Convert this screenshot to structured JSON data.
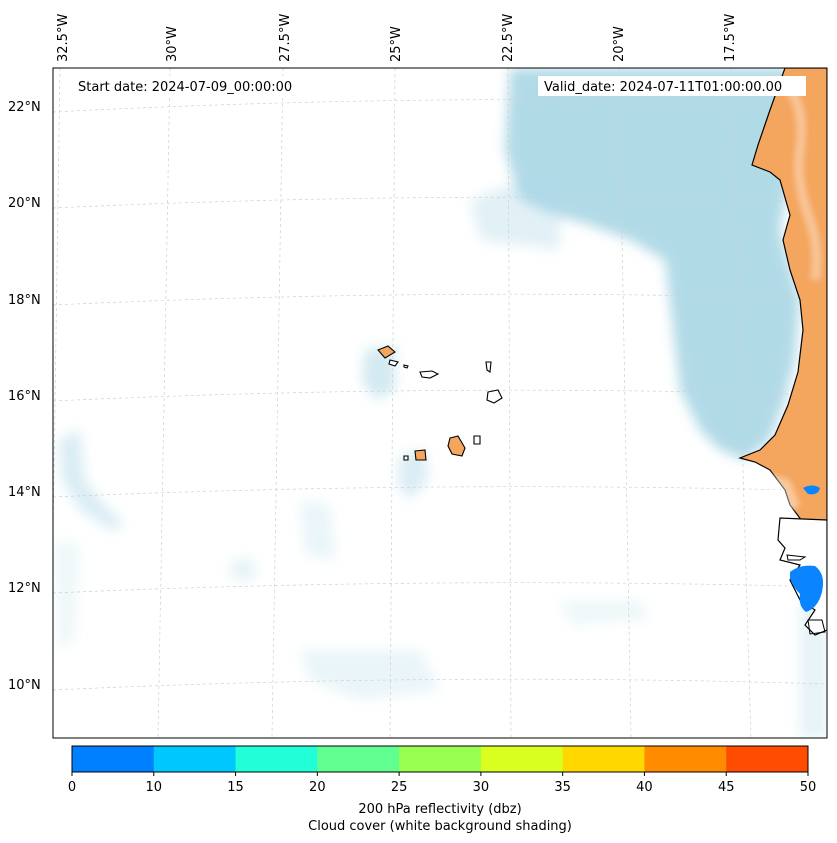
{
  "map": {
    "start_label": "Start date: 2024-07-09_00:00:00",
    "valid_label": "Valid_date: 2024-07-11T01:00:00.00",
    "lon_labels": [
      "32.5°W",
      "30°W",
      "27.5°W",
      "25°W",
      "22.5°W",
      "20°W",
      "17.5°W"
    ],
    "lat_labels": [
      "22°N",
      "20°N",
      "18°N",
      "16°N",
      "14°N",
      "12°N",
      "10°N"
    ]
  },
  "colorbar": {
    "ticks": [
      "0",
      "10",
      "15",
      "20",
      "25",
      "30",
      "35",
      "40",
      "45",
      "50"
    ],
    "colors": [
      "#0080ff",
      "#00c8ff",
      "#20ffd8",
      "#60ff90",
      "#98ff50",
      "#d8ff20",
      "#ffd800",
      "#ff8c00",
      "#ff4c00"
    ],
    "title": "200 hPa reflectivity (dbz)",
    "subtitle": "Cloud cover (white background shading)"
  },
  "colors": {
    "land": "#f4a55e",
    "cloud": "#add8e6",
    "echo": "#0a84ff"
  }
}
